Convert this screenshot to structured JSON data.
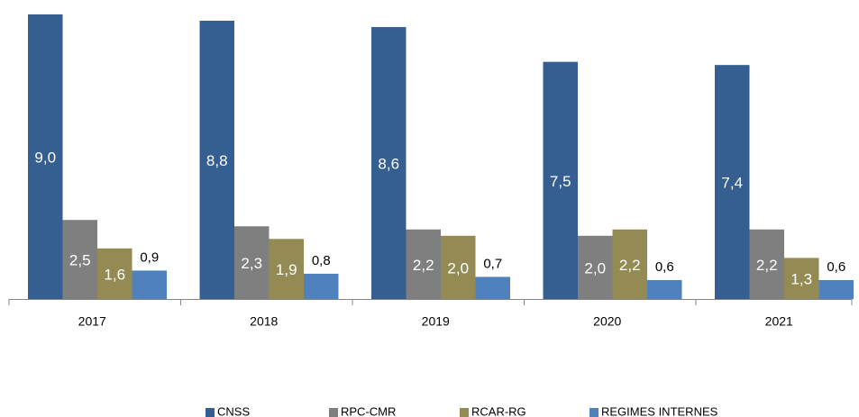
{
  "chart_data": {
    "type": "bar",
    "categories": [
      "2017",
      "2018",
      "2019",
      "2020",
      "2021"
    ],
    "series": [
      {
        "name": "CNSS",
        "color": "#355f91",
        "values": [
          9.0,
          8.8,
          8.6,
          7.5,
          7.4
        ],
        "value_labels": [
          "9,0",
          "8,8",
          "8,6",
          "7,5",
          "7,4"
        ]
      },
      {
        "name": "RPC-CMR",
        "color": "#7f7f7f",
        "values": [
          2.5,
          2.3,
          2.2,
          2.0,
          2.2
        ],
        "value_labels": [
          "2,5",
          "2,3",
          "2,2",
          "2,0",
          "2,2"
        ]
      },
      {
        "name": "RCAR-RG",
        "color": "#948a54",
        "values": [
          1.6,
          1.9,
          2.0,
          2.2,
          1.3
        ],
        "value_labels": [
          "1,6",
          "1,9",
          "2,0",
          "2,2",
          "1,3"
        ]
      },
      {
        "name": "REGIMES INTERNES",
        "color": "#4f81bd",
        "values": [
          0.9,
          0.8,
          0.7,
          0.6,
          0.6
        ],
        "value_labels": [
          "0,9",
          "0,8",
          "0,7",
          "0,6",
          "0,6"
        ]
      }
    ],
    "ylim": [
      0,
      9
    ],
    "legend": "bottom"
  }
}
